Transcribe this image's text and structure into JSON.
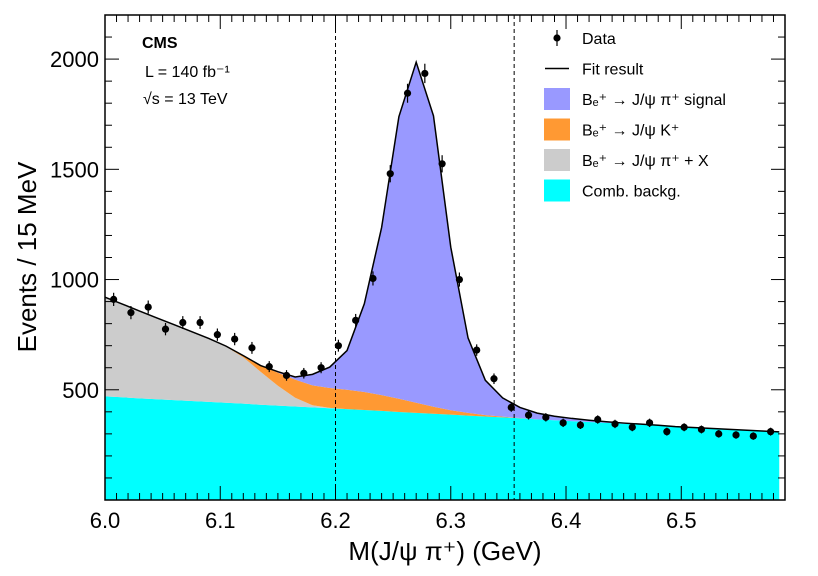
{
  "chart_data": {
    "type": "scatter",
    "xlabel": "M(J/ψ π⁺) (GeV)",
    "ylabel": "Events / 15 MeV",
    "xlim": [
      6.0,
      6.59
    ],
    "ylim": [
      0,
      2200
    ],
    "x_ticks": [
      6.0,
      6.1,
      6.2,
      6.3,
      6.4,
      6.5
    ],
    "y_ticks": [
      500,
      1000,
      1500,
      2000
    ],
    "annotations": {
      "experiment": "CMS",
      "luminosity": "L = 140 fb⁻¹",
      "energy": "√s = 13 TeV"
    },
    "vertical_lines": [
      6.2,
      6.355
    ],
    "legend": {
      "placement": "top-right",
      "entries": [
        {
          "label": "Data",
          "style": "marker",
          "color": "#000000"
        },
        {
          "label": "Fit result",
          "style": "line",
          "color": "#000000"
        },
        {
          "label": "Bₑ⁺ → J/ψ π⁺ signal",
          "style": "fill",
          "color": "#9999ff"
        },
        {
          "label": "Bₑ⁺ → J/ψ K⁺",
          "style": "fill",
          "color": "#ff9933"
        },
        {
          "label": "Bₑ⁺ → J/ψ π⁺ + X",
          "style": "fill",
          "color": "#cccccc"
        },
        {
          "label": "Comb. backg.",
          "style": "fill",
          "color": "#00ffff"
        }
      ]
    },
    "data_points": {
      "name": "Data",
      "x": [
        6.0075,
        6.0225,
        6.0375,
        6.0525,
        6.0675,
        6.0825,
        6.0975,
        6.1125,
        6.1275,
        6.1425,
        6.1575,
        6.1725,
        6.1875,
        6.2025,
        6.2175,
        6.2325,
        6.2475,
        6.2625,
        6.2775,
        6.2925,
        6.3075,
        6.3225,
        6.3375,
        6.3525,
        6.3675,
        6.3825,
        6.3975,
        6.4125,
        6.4275,
        6.4425,
        6.4575,
        6.4725,
        6.4875,
        6.5025,
        6.5175,
        6.5325,
        6.5475,
        6.5625,
        6.5775
      ],
      "y": [
        910,
        850,
        875,
        775,
        805,
        805,
        750,
        730,
        690,
        605,
        565,
        575,
        600,
        700,
        815,
        1005,
        1480,
        1845,
        1935,
        1525,
        1000,
        680,
        550,
        420,
        385,
        375,
        350,
        340,
        365,
        345,
        330,
        350,
        310,
        330,
        320,
        300,
        295,
        290,
        310
      ],
      "yerr": [
        30,
        30,
        30,
        28,
        29,
        29,
        28,
        28,
        27,
        25,
        24,
        24,
        25,
        27,
        29,
        32,
        39,
        43,
        44,
        39,
        32,
        26,
        24,
        20,
        20,
        19,
        19,
        18,
        19,
        19,
        18,
        19,
        18,
        18,
        18,
        17,
        17,
        17,
        18
      ]
    },
    "components": {
      "x": [
        6.0,
        6.015,
        6.03,
        6.045,
        6.06,
        6.075,
        6.09,
        6.105,
        6.12,
        6.135,
        6.15,
        6.165,
        6.18,
        6.195,
        6.21,
        6.225,
        6.24,
        6.255,
        6.27,
        6.285,
        6.3,
        6.315,
        6.33,
        6.345,
        6.36,
        6.375,
        6.39,
        6.405,
        6.42,
        6.435,
        6.45,
        6.465,
        6.48,
        6.495,
        6.51,
        6.525,
        6.54,
        6.555,
        6.57,
        6.585
      ],
      "comb_backg": [
        470,
        466,
        461,
        457,
        453,
        449,
        445,
        441,
        437,
        432,
        428,
        424,
        420,
        416,
        412,
        408,
        404,
        399,
        395,
        391,
        387,
        383,
        379,
        375,
        371,
        366,
        362,
        358,
        354,
        350,
        346,
        342,
        338,
        333,
        329,
        325,
        321,
        317,
        313,
        309
      ],
      "pi_plus_x": [
        450,
        423,
        396,
        369,
        342,
        315,
        288,
        255,
        210,
        150,
        90,
        40,
        10,
        2,
        0,
        0,
        0,
        0,
        0,
        0,
        0,
        0,
        0,
        0,
        0,
        0,
        0,
        0,
        0,
        0,
        0,
        0,
        0,
        0,
        0,
        0,
        0,
        0,
        0,
        0
      ],
      "jpsi_k": [
        0,
        0,
        0,
        0,
        0,
        0,
        0,
        2,
        8,
        28,
        60,
        82,
        90,
        90,
        88,
        82,
        72,
        60,
        46,
        32,
        20,
        12,
        6,
        3,
        1,
        0,
        0,
        0,
        0,
        0,
        0,
        0,
        0,
        0,
        0,
        0,
        0,
        0,
        0,
        0
      ],
      "signal": [
        0,
        0,
        0,
        0,
        0,
        0,
        0,
        0,
        0,
        0,
        4,
        12,
        50,
        95,
        178,
        400,
        760,
        1280,
        1545,
        1320,
        740,
        340,
        158,
        85,
        48,
        28,
        18,
        12,
        8,
        5,
        3,
        2,
        1,
        0,
        0,
        0,
        0,
        0,
        0,
        0
      ]
    }
  }
}
